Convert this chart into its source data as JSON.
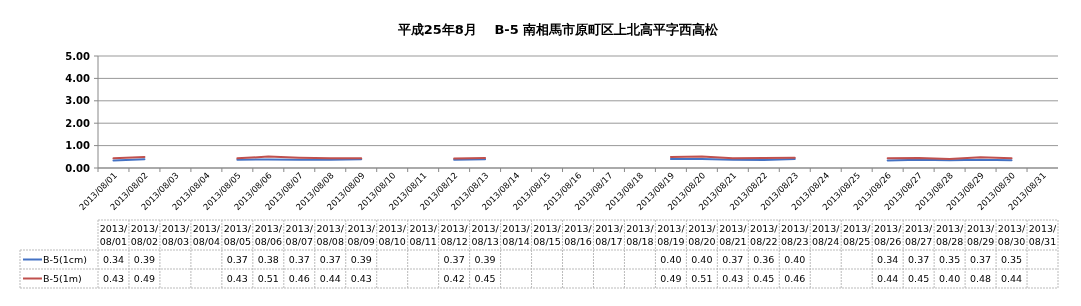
{
  "chart_data": {
    "type": "line",
    "title": "平成25年8月　 B-5 南相馬市原町区上北高平字西高松",
    "categories": [
      "2013/08/01",
      "2013/08/02",
      "2013/08/03",
      "2013/08/04",
      "2013/08/05",
      "2013/08/06",
      "2013/08/07",
      "2013/08/08",
      "2013/08/09",
      "2013/08/10",
      "2013/08/11",
      "2013/08/12",
      "2013/08/13",
      "2013/08/14",
      "2013/08/15",
      "2013/08/16",
      "2013/08/17",
      "2013/08/18",
      "2013/08/19",
      "2013/08/20",
      "2013/08/21",
      "2013/08/22",
      "2013/08/23",
      "2013/08/24",
      "2013/08/25",
      "2013/08/26",
      "2013/08/27",
      "2013/08/28",
      "2013/08/29",
      "2013/08/30",
      "2013/08/31"
    ],
    "series": [
      {
        "name": "B-5(1cm)",
        "color": "#4472c4",
        "values": [
          0.34,
          0.39,
          null,
          null,
          0.37,
          0.38,
          0.37,
          0.37,
          0.39,
          null,
          null,
          0.37,
          0.39,
          null,
          null,
          null,
          null,
          null,
          0.4,
          0.4,
          0.37,
          0.36,
          0.4,
          null,
          null,
          0.34,
          0.37,
          0.35,
          0.37,
          0.35,
          null
        ],
        "value_labels": [
          "0.34",
          "0.39",
          null,
          null,
          "0.37",
          "0.38",
          "0.37",
          "0.37",
          "0.39",
          null,
          null,
          "0.37",
          "0.39",
          null,
          null,
          null,
          null,
          null,
          "0.40",
          "0.40",
          "0.37",
          "0.36",
          "0.40",
          null,
          null,
          "0.34",
          "0.37",
          "0.35",
          "0.37",
          "0.35",
          null
        ]
      },
      {
        "name": "B-5(1m)",
        "color": "#c0504d",
        "values": [
          0.43,
          0.49,
          null,
          null,
          0.43,
          0.51,
          0.46,
          0.44,
          0.43,
          null,
          null,
          0.42,
          0.45,
          null,
          null,
          null,
          null,
          null,
          0.49,
          0.51,
          0.43,
          0.45,
          0.46,
          null,
          null,
          0.44,
          0.45,
          0.4,
          0.48,
          0.44,
          null
        ],
        "value_labels": [
          "0.43",
          "0.49",
          null,
          null,
          "0.43",
          "0.51",
          "0.46",
          "0.44",
          "0.43",
          null,
          null,
          "0.42",
          "0.45",
          null,
          null,
          null,
          null,
          null,
          "0.49",
          "0.51",
          "0.43",
          "0.45",
          "0.46",
          null,
          null,
          "0.44",
          "0.45",
          "0.40",
          "0.48",
          "0.44",
          null
        ]
      }
    ],
    "ylim": [
      0,
      5
    ],
    "yticks": [
      {
        "value": 0,
        "label": "0.00"
      },
      {
        "value": 1,
        "label": "1.00"
      },
      {
        "value": 2,
        "label": "2.00"
      },
      {
        "value": 3,
        "label": "3.00"
      },
      {
        "value": 4,
        "label": "4.00"
      },
      {
        "value": 5,
        "label": "5.00"
      }
    ],
    "grid": "y",
    "legend": "bottom",
    "marker": "none",
    "line_style": "solid"
  }
}
